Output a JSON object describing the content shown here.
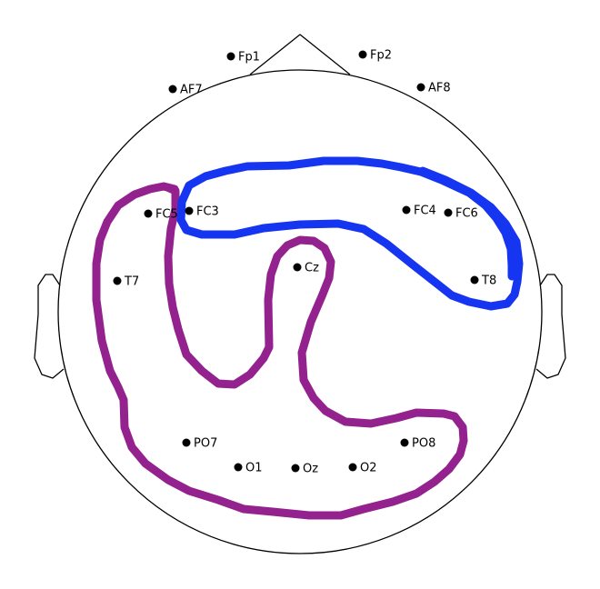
{
  "head": {
    "outline_color": "#000000"
  },
  "electrodes": [
    {
      "id": "fp1",
      "label": "Fp1"
    },
    {
      "id": "fp2",
      "label": "Fp2"
    },
    {
      "id": "af7",
      "label": "AF7"
    },
    {
      "id": "af8",
      "label": "AF8"
    },
    {
      "id": "fc5",
      "label": "FC5"
    },
    {
      "id": "fc3",
      "label": "FC3"
    },
    {
      "id": "fc4",
      "label": "FC4"
    },
    {
      "id": "fc6",
      "label": "FC6"
    },
    {
      "id": "t7",
      "label": "T7"
    },
    {
      "id": "cz",
      "label": "Cz"
    },
    {
      "id": "t8",
      "label": "T8"
    },
    {
      "id": "po7",
      "label": "PO7"
    },
    {
      "id": "po8",
      "label": "PO8"
    },
    {
      "id": "o1",
      "label": "O1"
    },
    {
      "id": "oz",
      "label": "Oz"
    },
    {
      "id": "o2",
      "label": "O2"
    }
  ],
  "strokes": [
    {
      "id": "blue",
      "color": "#1535f0"
    },
    {
      "id": "purple",
      "color": "#93228f"
    }
  ]
}
